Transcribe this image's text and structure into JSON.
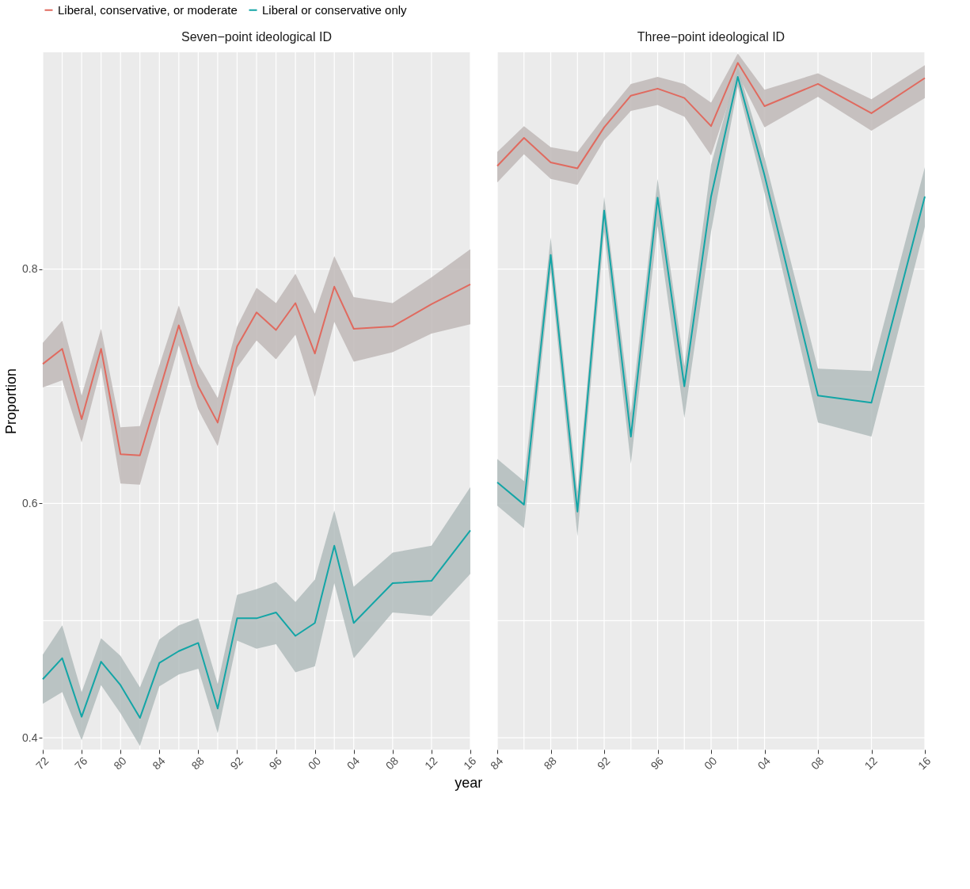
{
  "chart_data": [
    {
      "type": "line",
      "title": "Seven−point ideological ID",
      "xlabel": "year",
      "ylabel": "Proportion",
      "legend": "top",
      "grid": true,
      "x": [
        1972,
        1974,
        1976,
        1978,
        1980,
        1982,
        1984,
        1986,
        1988,
        1990,
        1992,
        1994,
        1996,
        1998,
        2000,
        2002,
        2004,
        2008,
        2012,
        2016
      ],
      "xlim": [
        1972,
        2016
      ],
      "xticks": [
        {
          "value": 1972,
          "label": "72"
        },
        {
          "value": 1976,
          "label": "76"
        },
        {
          "value": 1980,
          "label": "80"
        },
        {
          "value": 1984,
          "label": "84"
        },
        {
          "value": 1988,
          "label": "88"
        },
        {
          "value": 1992,
          "label": "92"
        },
        {
          "value": 1996,
          "label": "96"
        },
        {
          "value": 2000,
          "label": "00"
        },
        {
          "value": 2004,
          "label": "04"
        },
        {
          "value": 2008,
          "label": "08"
        },
        {
          "value": 2012,
          "label": "12"
        },
        {
          "value": 2016,
          "label": "16"
        }
      ],
      "ylim": [
        0.39,
        0.985
      ],
      "yticks": [
        0.4,
        0.6,
        0.8
      ],
      "series": [
        {
          "name": "Liberal, conservative, or moderate",
          "color": "#e06a5f",
          "values": [
            0.719,
            0.732,
            0.672,
            0.732,
            0.642,
            0.641,
            0.696,
            0.752,
            0.7,
            0.669,
            0.734,
            0.763,
            0.748,
            0.771,
            0.728,
            0.785,
            0.749,
            0.751,
            0.77,
            0.787
          ],
          "lower": [
            0.699,
            0.705,
            0.652,
            0.716,
            0.617,
            0.616,
            0.675,
            0.735,
            0.68,
            0.649,
            0.716,
            0.739,
            0.723,
            0.744,
            0.691,
            0.755,
            0.721,
            0.729,
            0.745,
            0.753
          ],
          "upper": [
            0.737,
            0.756,
            0.692,
            0.749,
            0.665,
            0.666,
            0.718,
            0.769,
            0.719,
            0.69,
            0.751,
            0.784,
            0.771,
            0.796,
            0.762,
            0.811,
            0.776,
            0.771,
            0.793,
            0.817
          ]
        },
        {
          "name": "Liberal or conservative only",
          "color": "#13a5a6",
          "values": [
            0.45,
            0.468,
            0.418,
            0.465,
            0.445,
            0.417,
            0.464,
            0.474,
            0.481,
            0.425,
            0.502,
            0.502,
            0.507,
            0.487,
            0.498,
            0.564,
            0.498,
            0.532,
            0.534,
            0.577
          ],
          "lower": [
            0.429,
            0.439,
            0.398,
            0.445,
            0.421,
            0.393,
            0.444,
            0.454,
            0.459,
            0.404,
            0.483,
            0.476,
            0.48,
            0.456,
            0.461,
            0.532,
            0.468,
            0.507,
            0.504,
            0.54
          ],
          "upper": [
            0.471,
            0.496,
            0.439,
            0.485,
            0.47,
            0.443,
            0.484,
            0.496,
            0.502,
            0.446,
            0.522,
            0.527,
            0.533,
            0.516,
            0.535,
            0.594,
            0.529,
            0.558,
            0.564,
            0.614
          ]
        }
      ]
    },
    {
      "type": "line",
      "title": "Three−point ideological ID",
      "grid": true,
      "tick_labels": "x",
      "x": [
        1984,
        1986,
        1988,
        1990,
        1992,
        1994,
        1996,
        1998,
        2000,
        2002,
        2004,
        2008,
        2012,
        2016
      ],
      "xlim": [
        1984,
        2016
      ],
      "xticks": [
        {
          "value": 1984,
          "label": "84"
        },
        {
          "value": 1988,
          "label": "88"
        },
        {
          "value": 1992,
          "label": "92"
        },
        {
          "value": 1996,
          "label": "96"
        },
        {
          "value": 2000,
          "label": "00"
        },
        {
          "value": 2004,
          "label": "04"
        },
        {
          "value": 2008,
          "label": "08"
        },
        {
          "value": 2012,
          "label": "12"
        },
        {
          "value": 2016,
          "label": "16"
        }
      ],
      "ylim": [
        0.39,
        0.985
      ],
      "yticks": [
        0.4,
        0.6,
        0.8
      ],
      "series": [
        {
          "name": "Liberal, conservative, or moderate",
          "color": "#e06a5f",
          "values": [
            0.888,
            0.912,
            0.891,
            0.886,
            0.921,
            0.948,
            0.954,
            0.946,
            0.922,
            0.976,
            0.939,
            0.958,
            0.933,
            0.963
          ],
          "lower": [
            0.874,
            0.898,
            0.877,
            0.872,
            0.91,
            0.935,
            0.94,
            0.93,
            0.897,
            0.966,
            0.921,
            0.947,
            0.918,
            0.946
          ],
          "upper": [
            0.9,
            0.922,
            0.904,
            0.9,
            0.93,
            0.958,
            0.964,
            0.958,
            0.942,
            0.984,
            0.953,
            0.967,
            0.945,
            0.974
          ]
        },
        {
          "name": "Liberal or conservative only",
          "color": "#13a5a6",
          "values": [
            0.618,
            0.599,
            0.812,
            0.593,
            0.85,
            0.657,
            0.861,
            0.7,
            0.862,
            0.964,
            0.88,
            0.692,
            0.686,
            0.862
          ],
          "lower": [
            0.598,
            0.579,
            0.797,
            0.572,
            0.832,
            0.634,
            0.837,
            0.673,
            0.832,
            0.956,
            0.865,
            0.669,
            0.657,
            0.836
          ],
          "upper": [
            0.638,
            0.619,
            0.827,
            0.61,
            0.862,
            0.677,
            0.877,
            0.717,
            0.889,
            0.972,
            0.895,
            0.715,
            0.713,
            0.887
          ]
        }
      ]
    }
  ]
}
